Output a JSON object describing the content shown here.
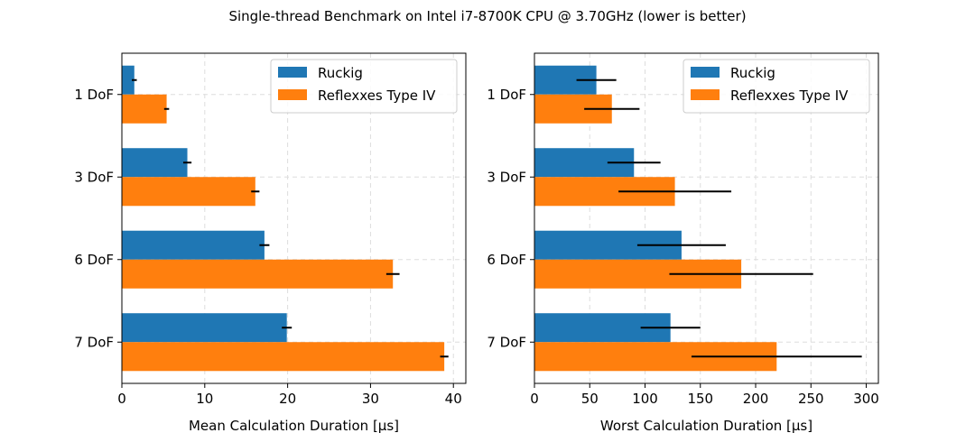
{
  "figure": {
    "title": "Single-thread Benchmark on Intel i7-8700K CPU @ 3.70GHz (lower is better)"
  },
  "colors": {
    "ruckig": "#1f77b4",
    "reflexxes": "#ff7f0e",
    "error_bar": "#000000",
    "grid": "#dddddd"
  },
  "chart_data": [
    {
      "type": "bar",
      "orientation": "horizontal",
      "categories": [
        "1 DoF",
        "3 DoF",
        "6 DoF",
        "7 DoF"
      ],
      "series": [
        {
          "name": "Ruckig",
          "values": [
            1.5,
            7.9,
            17.2,
            19.9
          ],
          "errors": [
            0.3,
            0.5,
            0.6,
            0.6
          ]
        },
        {
          "name": "Reflexxes Type IV",
          "values": [
            5.4,
            16.1,
            32.7,
            38.9
          ],
          "errors": [
            0.3,
            0.5,
            0.8,
            0.5
          ]
        }
      ],
      "title": "",
      "xlabel": "Mean Calculation Duration [µs]",
      "ylabel": "",
      "xlim": [
        0,
        41.5
      ],
      "xticks": [
        0,
        10,
        20,
        30,
        40
      ],
      "grid": true,
      "legend": "top-right"
    },
    {
      "type": "bar",
      "orientation": "horizontal",
      "categories": [
        "1 DoF",
        "3 DoF",
        "6 DoF",
        "7 DoF"
      ],
      "series": [
        {
          "name": "Ruckig",
          "values": [
            56,
            90,
            133,
            123
          ],
          "errors": [
            18,
            24,
            40,
            27
          ]
        },
        {
          "name": "Reflexxes Type IV",
          "values": [
            70,
            127,
            187,
            219
          ],
          "errors": [
            25,
            51,
            65,
            77
          ]
        }
      ],
      "title": "",
      "xlabel": "Worst Calculation Duration [µs]",
      "ylabel": "",
      "xlim": [
        0,
        311
      ],
      "xticks": [
        0,
        50,
        100,
        150,
        200,
        250,
        300
      ],
      "grid": true,
      "legend": "top-right"
    }
  ]
}
